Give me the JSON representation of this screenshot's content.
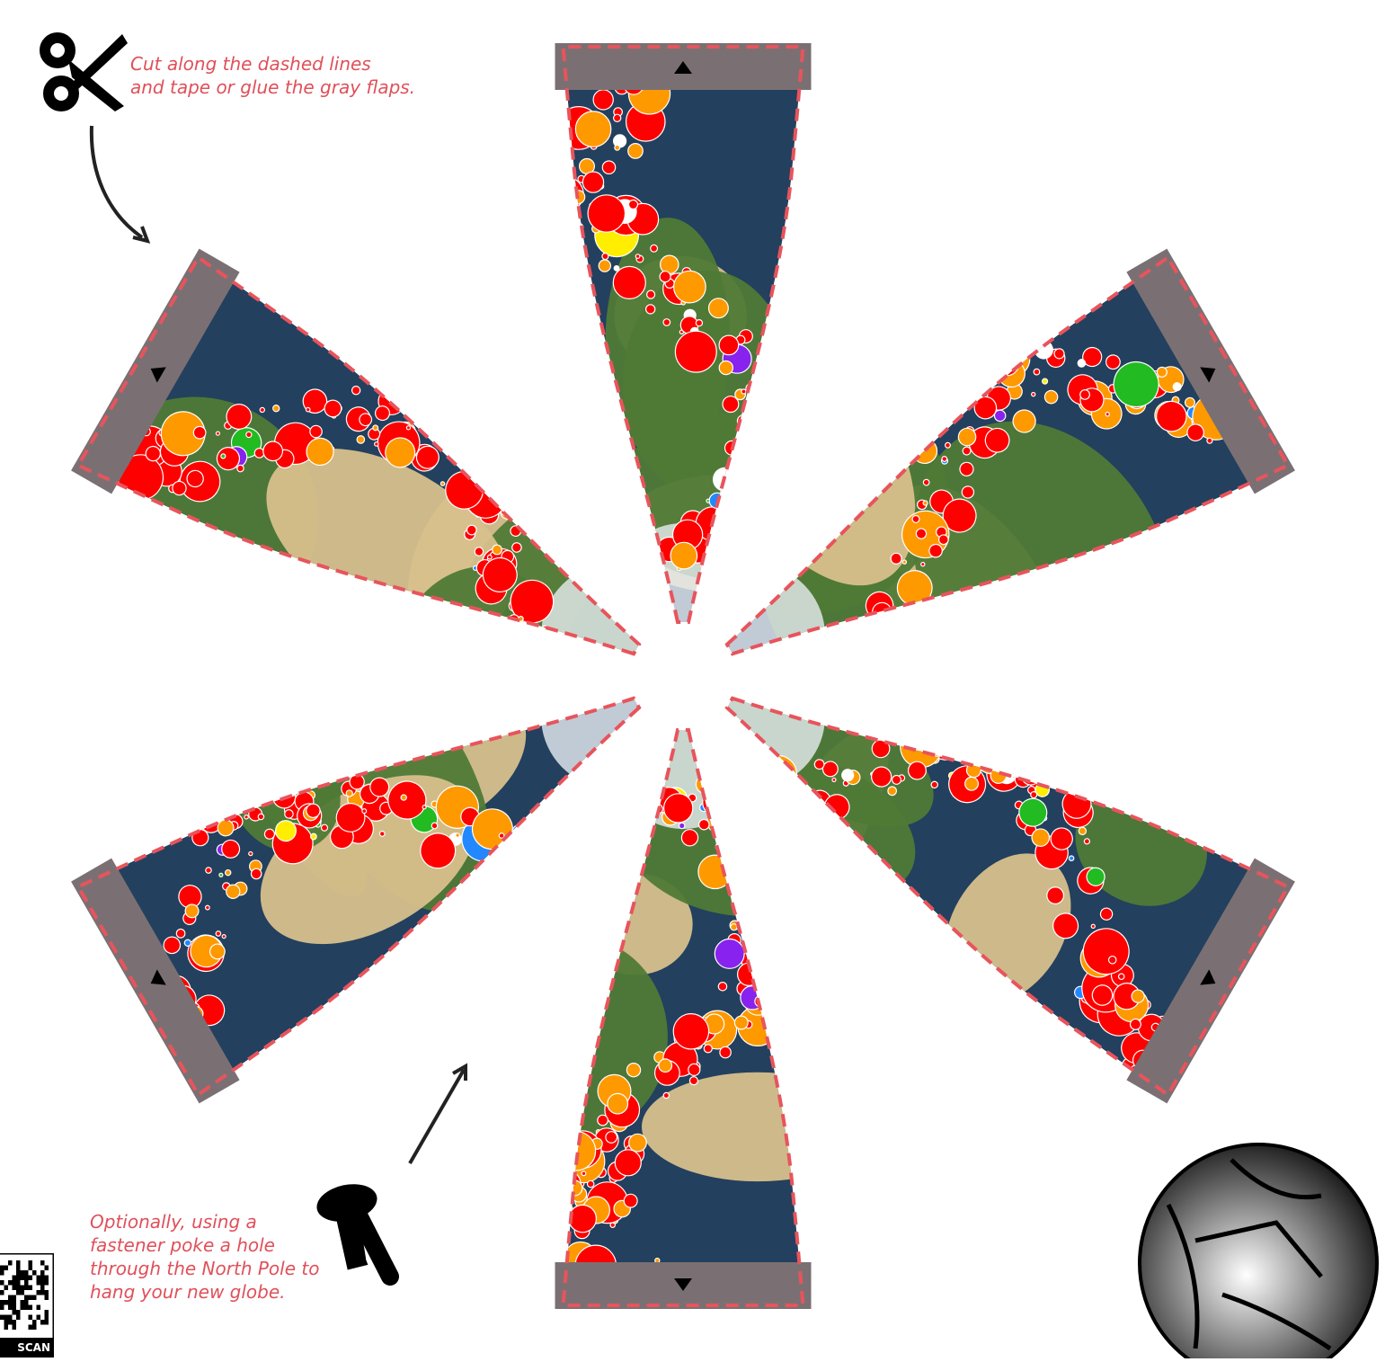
{
  "instructions": {
    "cut_note_lines": [
      "Cut along the dashed lines",
      "and tape or glue the gray flaps."
    ],
    "hang_note_lines": [
      "Optionally, using a",
      "fastener poke a hole",
      "through the North Pole to",
      "hang your new globe."
    ]
  },
  "qr": {
    "label": "SCAN ME"
  },
  "icons": [
    "scissors-icon",
    "thumbtack-icon",
    "globe-illustration-icon",
    "arrow-icon",
    "flap-triangle-icon"
  ],
  "colors": {
    "dashed_cut_line": "#e8545c",
    "flap_gray": "#7a7073",
    "note_text": "#e0505a",
    "ocean": "#23405e",
    "land_green": "#4f7a36",
    "land_desert": "#d8c08c",
    "ice": "#e8eef2",
    "magnitude_colors": [
      "#ffffff",
      "#ff0000",
      "#ff9900",
      "#ffee00",
      "#22bb22",
      "#2288ff",
      "#8822ee"
    ]
  },
  "map": {
    "projection": "interrupted globe gores, north-polar centered",
    "gore_count": 6,
    "data_layer": "earthquake epicenters, circle size and color by magnitude"
  }
}
